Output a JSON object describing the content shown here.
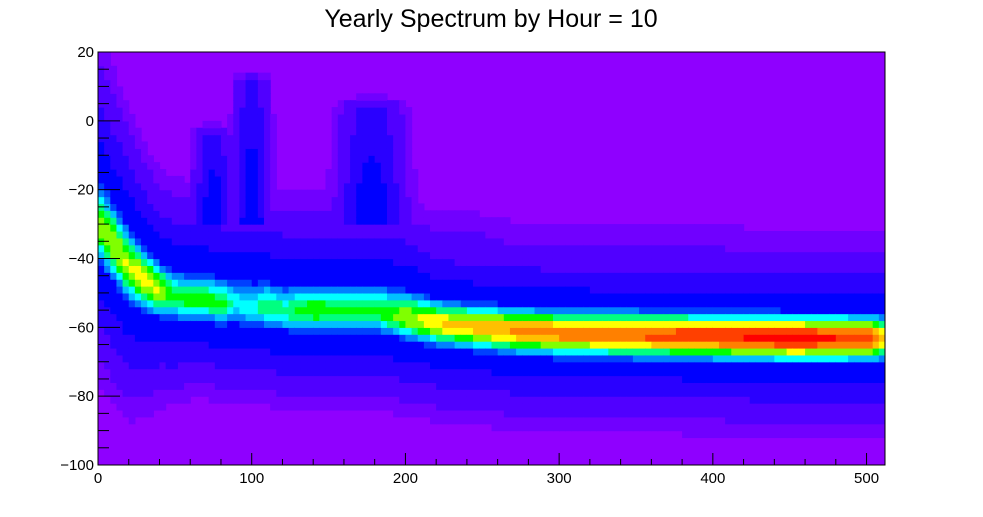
{
  "chart_data": {
    "type": "heatmap",
    "title": "Yearly Spectrum by Hour = 10",
    "xlabel": "",
    "ylabel": "",
    "xlim": [
      0,
      512
    ],
    "ylim": [
      -100,
      20
    ],
    "x_ticks": [
      0,
      100,
      200,
      300,
      400,
      500
    ],
    "y_ticks": [
      -100,
      -80,
      -60,
      -40,
      -20,
      0,
      20
    ],
    "x_tick_labels": [
      "0",
      "100",
      "200",
      "300",
      "400",
      "500"
    ],
    "y_tick_labels": [
      "−100",
      "−80",
      "−60",
      "−40",
      "−20",
      "0",
      "20"
    ],
    "background_color": "#8f00ff",
    "colormap": [
      "#8f00ff",
      "#7000ff",
      "#5000ff",
      "#2a00ff",
      "#0000ff",
      "#0040ff",
      "#0080ff",
      "#00c0ff",
      "#00ffff",
      "#00ff80",
      "#00ff00",
      "#80ff00",
      "#ffff00",
      "#ffc000",
      "#ff8000",
      "#ff4000",
      "#ff0000"
    ],
    "ridge": {
      "x": [
        0,
        10,
        20,
        30,
        40,
        50,
        60,
        70,
        80,
        90,
        100,
        110,
        120,
        130,
        140,
        150,
        160,
        170,
        180,
        190,
        200,
        225,
        250,
        275,
        300,
        350,
        400,
        450,
        500,
        512
      ],
      "center": [
        -30,
        -36,
        -42,
        -46,
        -49,
        -51,
        -52,
        -52,
        -53,
        -53,
        -54,
        -54,
        -55,
        -55,
        -55,
        -55,
        -55,
        -55,
        -55,
        -56,
        -57,
        -59,
        -60,
        -61,
        -61.5,
        -62,
        -62.5,
        -63,
        -63,
        -63
      ],
      "intensity": [
        0.68,
        0.72,
        0.72,
        0.75,
        0.72,
        0.6,
        0.62,
        0.62,
        0.62,
        0.5,
        0.5,
        0.6,
        0.55,
        0.6,
        0.65,
        0.62,
        0.6,
        0.6,
        0.6,
        0.65,
        0.7,
        0.78,
        0.82,
        0.86,
        0.88,
        0.92,
        0.95,
        1.0,
        0.95,
        0.75
      ],
      "halfwidth_low": [
        8,
        8,
        8,
        7,
        6,
        5.5,
        5,
        5,
        5,
        5,
        5,
        5,
        5,
        5,
        5,
        5,
        5,
        5,
        5,
        5,
        5,
        5,
        5,
        5,
        5,
        5,
        5,
        5,
        5,
        5
      ],
      "halfwidth_high": [
        10,
        9,
        8,
        7,
        6,
        6,
        6,
        6,
        6,
        6,
        6,
        6,
        6,
        6,
        6,
        6,
        6,
        6,
        6,
        6,
        6,
        5,
        5,
        5,
        5,
        5,
        5,
        5,
        5,
        5
      ]
    },
    "peaks": [
      {
        "x": 100,
        "y_top": 10,
        "y_bottom": -30,
        "width": 9
      },
      {
        "x": 178,
        "y_top": 3,
        "y_bottom": -30,
        "width": 17
      },
      {
        "x": 75,
        "y_top": -5,
        "y_bottom": -30,
        "width": 10
      }
    ]
  }
}
